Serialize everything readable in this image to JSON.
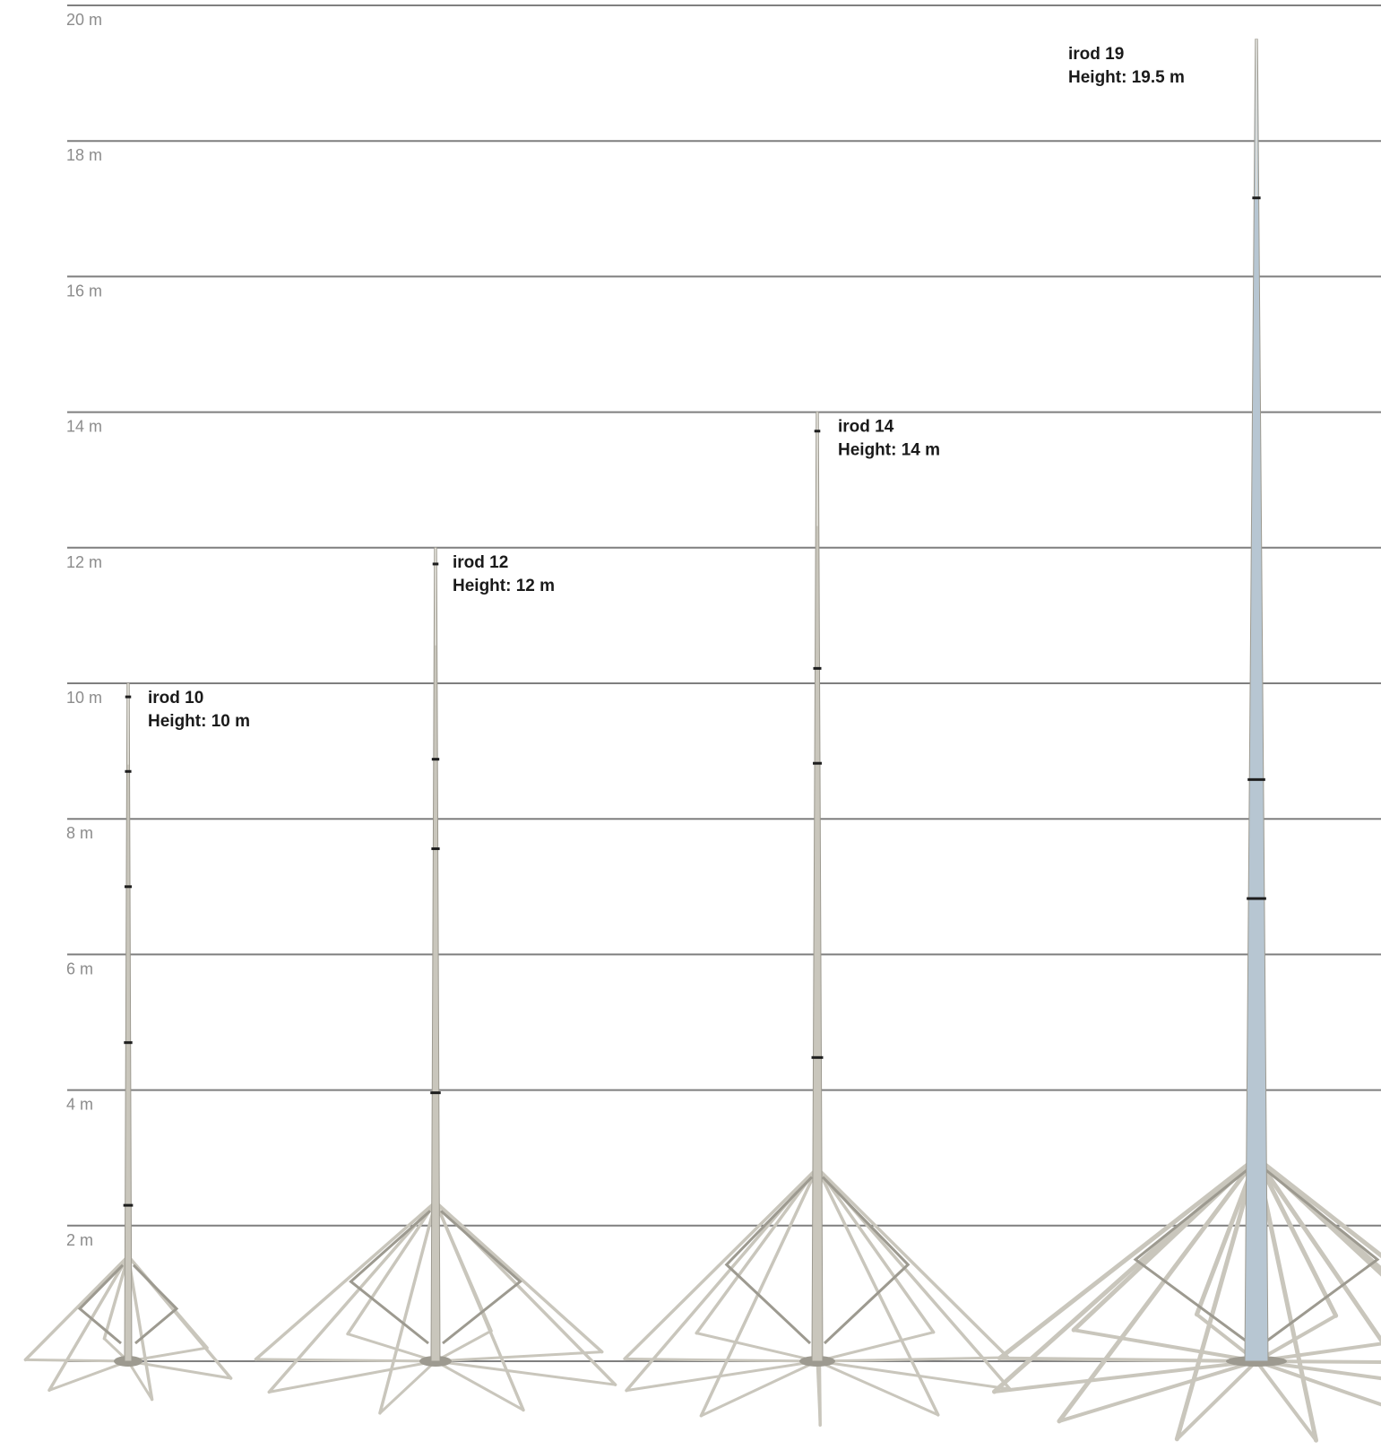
{
  "scale": {
    "unit": "m",
    "gridlines": [
      {
        "value": 0,
        "label": ""
      },
      {
        "value": 2,
        "label": "2 m"
      },
      {
        "value": 4,
        "label": "4 m"
      },
      {
        "value": 6,
        "label": "6 m"
      },
      {
        "value": 8,
        "label": "8 m"
      },
      {
        "value": 10,
        "label": "10 m"
      },
      {
        "value": 12,
        "label": "12 m"
      },
      {
        "value": 14,
        "label": "14 m"
      },
      {
        "value": 16,
        "label": "16 m"
      },
      {
        "value": 18,
        "label": "18 m"
      },
      {
        "value": 20,
        "label": "20 m"
      }
    ]
  },
  "rods": [
    {
      "id": "irod-10",
      "name": "irod 10",
      "height_label": "Height: 10 m",
      "height_m": 10
    },
    {
      "id": "irod-12",
      "name": "irod 12",
      "height_label": "Height: 12 m",
      "height_m": 12
    },
    {
      "id": "irod-14",
      "name": "irod 14",
      "height_label": "Height: 14 m",
      "height_m": 14
    },
    {
      "id": "irod-19",
      "name": "irod 19",
      "height_label": "Height: 19.5 m",
      "height_m": 19.5
    }
  ],
  "colors": {
    "gridline": "#7f7f7f",
    "label": "#8c8c8c",
    "rod": "#c9c6bc",
    "rod_dark": "#9d9a90",
    "rod_19_mast": "#b7c6d2",
    "joint": "#1e1e1e"
  }
}
